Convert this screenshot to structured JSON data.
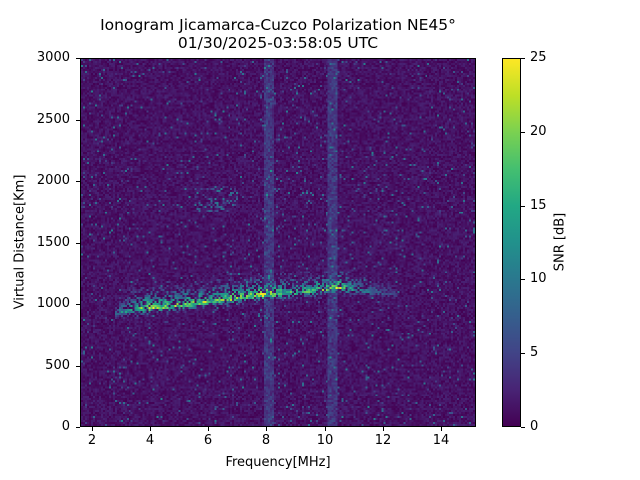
{
  "chart_data": {
    "type": "heatmap",
    "title": "Ionogram Jicamarca-Cuzco Polarization NE45°",
    "subtitle": "01/30/2025-03:58:05 UTC",
    "xlabel": "Frequency[MHz]",
    "ylabel": "Virtual Distance[Km]",
    "xlim": [
      1.6,
      15.2
    ],
    "ylim": [
      0,
      3000
    ],
    "xticks": [
      2,
      4,
      6,
      8,
      10,
      12,
      14
    ],
    "yticks": [
      0,
      500,
      1000,
      1500,
      2000,
      2500,
      3000
    ],
    "colorbar": {
      "label": "SNR [dB]",
      "range": [
        0,
        25
      ],
      "ticks": [
        0,
        5,
        10,
        15,
        20,
        25
      ],
      "colormap": "viridis"
    },
    "grid": false,
    "echo_trace": {
      "description": "Main ionospheric echo (oblique path) rising from ~920 km at 2.8 MHz to ~1150 km at 10.8 MHz, fading by ~12.5 MHz",
      "points": [
        {
          "freq_mhz": 2.8,
          "distance_km": 920,
          "snr_db": 10
        },
        {
          "freq_mhz": 3.5,
          "distance_km": 950,
          "snr_db": 20
        },
        {
          "freq_mhz": 4.0,
          "distance_km": 960,
          "snr_db": 24
        },
        {
          "freq_mhz": 5.0,
          "distance_km": 980,
          "snr_db": 22
        },
        {
          "freq_mhz": 6.0,
          "distance_km": 1010,
          "snr_db": 22
        },
        {
          "freq_mhz": 7.0,
          "distance_km": 1040,
          "snr_db": 22
        },
        {
          "freq_mhz": 8.0,
          "distance_km": 1070,
          "snr_db": 25
        },
        {
          "freq_mhz": 9.0,
          "distance_km": 1080,
          "snr_db": 18
        },
        {
          "freq_mhz": 10.0,
          "distance_km": 1110,
          "snr_db": 20
        },
        {
          "freq_mhz": 10.5,
          "distance_km": 1130,
          "snr_db": 25
        },
        {
          "freq_mhz": 11.0,
          "distance_km": 1110,
          "snr_db": 14
        },
        {
          "freq_mhz": 12.0,
          "distance_km": 1080,
          "snr_db": 8
        },
        {
          "freq_mhz": 12.5,
          "distance_km": 1070,
          "snr_db": 5
        }
      ]
    },
    "secondary_echo": {
      "description": "Faint diffuse echo",
      "freq_range_mhz": [
        5.5,
        7.0
      ],
      "distance_range_km": [
        1750,
        1950
      ],
      "snr_db": 8
    },
    "interference_bands_mhz": [
      8.1,
      10.3
    ],
    "background_snr_db": 1.5
  }
}
